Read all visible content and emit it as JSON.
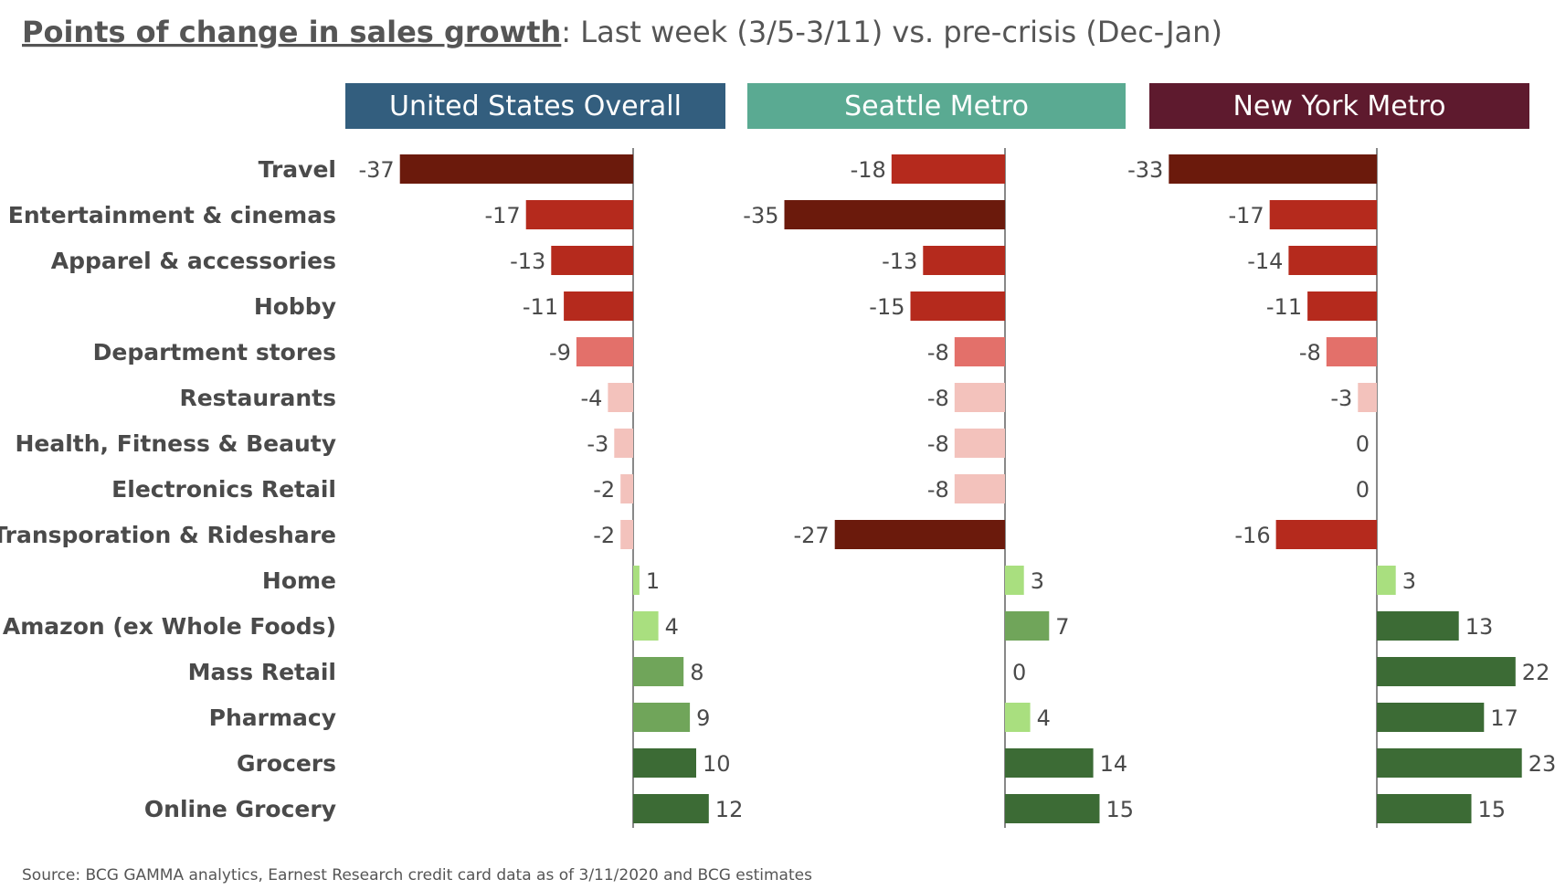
{
  "title": {
    "main": "Points of change in sales growth",
    "rest": ": Last week (3/5-3/11) vs. pre-crisis (Dec-Jan)"
  },
  "source": "Source: BCG GAMMA analytics, Earnest Research credit card data as of 3/11/2020 and BCG estimates",
  "colors": {
    "strong_neg": "#6b1a0c",
    "neg": "#b52a1d",
    "mid_neg": "#e3706a",
    "light_neg": "#f3c2bc",
    "light_pos": "#a9df7f",
    "mid_pos": "#70a55a",
    "strong_pos": "#3c6b35"
  },
  "chart_data": {
    "type": "bar",
    "orientation": "horizontal",
    "categories": [
      "Travel",
      "Entertainment & cinemas",
      "Apparel & accessories",
      "Hobby",
      "Department stores",
      "Restaurants",
      "Health, Fitness & Beauty",
      "Electronics Retail",
      "Transporation & Rideshare",
      "Home",
      "Amazon (ex Whole Foods)",
      "Mass Retail",
      "Pharmacy",
      "Grocers",
      "Online Grocery"
    ],
    "panels": [
      {
        "title": "United States Overall",
        "header_color": "#335e7e",
        "values": [
          -37,
          -17,
          -13,
          -11,
          -9,
          -4,
          -3,
          -2,
          -2,
          1,
          4,
          8,
          9,
          10,
          12
        ],
        "colors": [
          "strong_neg",
          "neg",
          "neg",
          "neg",
          "mid_neg",
          "light_neg",
          "light_neg",
          "light_neg",
          "light_neg",
          "light_pos",
          "light_pos",
          "mid_pos",
          "mid_pos",
          "strong_pos",
          "strong_pos"
        ]
      },
      {
        "title": "Seattle Metro",
        "header_color": "#5aaa92",
        "values": [
          -18,
          -35,
          -13,
          -15,
          -8,
          -8,
          -8,
          -8,
          -27,
          3,
          7,
          0,
          4,
          14,
          15
        ],
        "colors": [
          "neg",
          "strong_neg",
          "neg",
          "neg",
          "mid_neg",
          "light_neg",
          "light_neg",
          "light_neg",
          "strong_neg",
          "light_pos",
          "mid_pos",
          "light_pos",
          "light_pos",
          "strong_pos",
          "strong_pos"
        ]
      },
      {
        "title": "New York Metro",
        "header_color": "#5e1a2e",
        "values": [
          -33,
          -17,
          -14,
          -11,
          -8,
          -3,
          0,
          0,
          -16,
          3,
          13,
          22,
          17,
          23,
          15
        ],
        "colors": [
          "strong_neg",
          "neg",
          "neg",
          "neg",
          "mid_neg",
          "light_neg",
          "light_neg",
          "light_neg",
          "neg",
          "light_pos",
          "strong_pos",
          "strong_pos",
          "strong_pos",
          "strong_pos",
          "strong_pos"
        ]
      }
    ]
  }
}
